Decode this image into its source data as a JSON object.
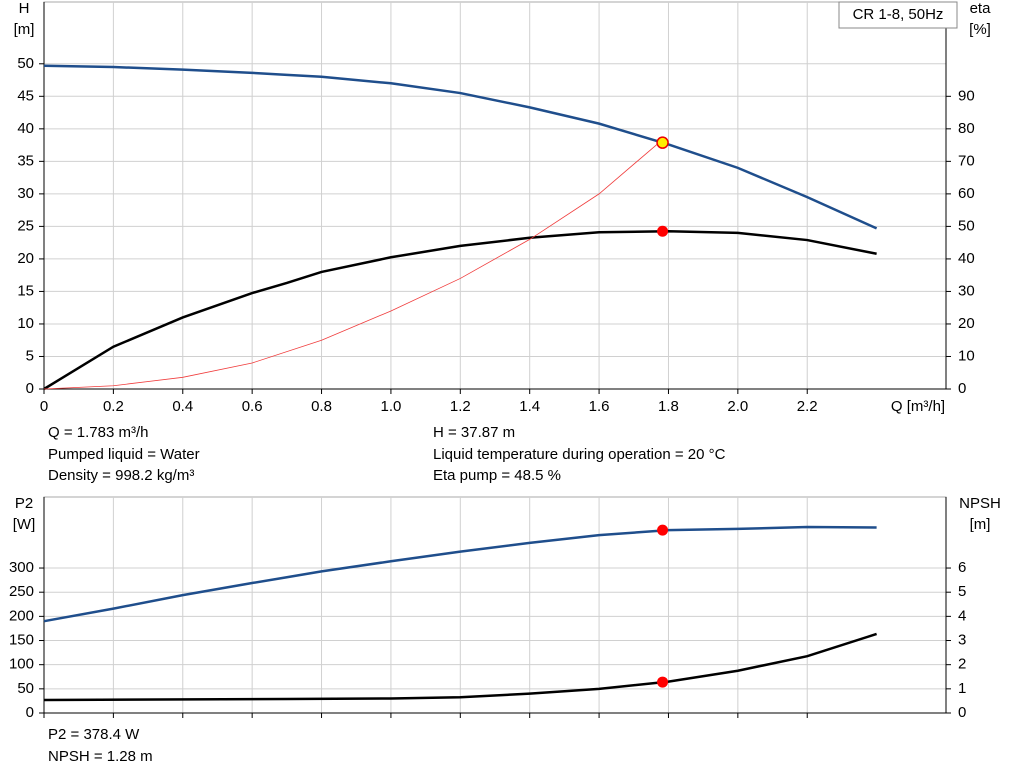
{
  "chart_data": [
    {
      "type": "line",
      "legend_box": "CR 1-8, 50Hz",
      "ylabel": [
        "H",
        "[m]"
      ],
      "y2label": [
        "eta",
        "[%]"
      ],
      "xlabel": "Q [m³/h]",
      "xlim": [
        0,
        2.6
      ],
      "ylim": [
        0,
        59.5
      ],
      "y2lim": [
        0,
        119
      ],
      "xticks": [
        0,
        0.2,
        0.4,
        0.6,
        0.8,
        {
          "value": 1,
          "label": "1.0"
        },
        1.2,
        1.4,
        1.6,
        1.8,
        {
          "value": 2,
          "label": "2.0"
        },
        2.2
      ],
      "yticks": [
        0,
        5,
        10,
        15,
        20,
        25,
        30,
        35,
        40,
        45,
        50
      ],
      "y2ticks": [
        0,
        10,
        20,
        30,
        40,
        50,
        60,
        70,
        80,
        90
      ],
      "grid": true,
      "series": [
        {
          "color": "#1f4e8c",
          "x": [
            0,
            0.2,
            0.4,
            0.6,
            0.7,
            0.8,
            1.0,
            1.2,
            1.4,
            1.6,
            1.8,
            2.0,
            2.2,
            2.4
          ],
          "values": [
            49.7,
            49.5,
            49.1,
            48.6,
            48.3,
            48.0,
            47.0,
            45.5,
            43.3,
            40.8,
            37.6,
            34.0,
            29.5,
            24.7
          ]
        },
        {
          "color": "#000000",
          "axis": "y2",
          "x": [
            0,
            0.2,
            0.4,
            0.6,
            0.7,
            0.8,
            1.0,
            1.2,
            1.4,
            1.6,
            1.8,
            2.0,
            2.2,
            2.4
          ],
          "values": [
            0,
            13,
            22,
            29.5,
            32.6,
            36,
            40.5,
            44,
            46.5,
            48.2,
            48.5,
            48,
            45.8,
            41.6
          ]
        },
        {
          "color": "#f03c3c",
          "x": [
            0,
            0.2,
            0.4,
            0.6,
            0.8,
            1.0,
            1.2,
            1.4,
            1.6,
            1.78
          ],
          "values": [
            0,
            0.5,
            1.8,
            4,
            7.5,
            12,
            17,
            23,
            30,
            38.2
          ]
        }
      ],
      "markers": [
        {
          "x": 1.783,
          "y": 37.87,
          "color": "#ffee00"
        },
        {
          "x": 1.783,
          "y": 48.5,
          "color": "#ff0000",
          "axis": "y2"
        }
      ],
      "annotations": [
        "Q = 1.783 m³/h",
        "Pumped liquid = Water",
        "Density = 998.2 kg/m³",
        "H = 37.87 m",
        "Liquid temperature during operation = 20 °C",
        "Eta pump = 48.5 %"
      ]
    },
    {
      "type": "line",
      "ylabel": [
        "P2",
        "[W]"
      ],
      "y2label": [
        "NPSH",
        "[m]"
      ],
      "xlim": [
        0,
        2.6
      ],
      "ylim": [
        0,
        447
      ],
      "y2lim": [
        0,
        8.94
      ],
      "yticks": [
        0,
        50,
        100,
        150,
        200,
        250,
        300
      ],
      "y2ticks": [
        0,
        1,
        2,
        3,
        4,
        5,
        6
      ],
      "grid": true,
      "series": [
        {
          "color": "#1f4e8c",
          "x": [
            0,
            0.2,
            0.4,
            0.6,
            0.7,
            0.8,
            1.0,
            1.2,
            1.4,
            1.6,
            1.8,
            2.0,
            2.2,
            2.4
          ],
          "values": [
            190,
            216,
            244,
            269,
            281,
            293,
            314,
            334,
            352,
            368,
            378.5,
            381,
            385,
            384
          ]
        },
        {
          "color": "#000000",
          "axis": "y2",
          "x": [
            0,
            0.7,
            1.0,
            1.2,
            1.4,
            1.6,
            1.8,
            2.0,
            2.2,
            2.4
          ],
          "values": [
            0.54,
            0.58,
            0.6,
            0.65,
            0.8,
            1.0,
            1.3,
            1.75,
            2.35,
            3.27
          ]
        }
      ],
      "markers": [
        {
          "x": 1.783,
          "y": 378.4,
          "color": "#ff0000"
        },
        {
          "x": 1.783,
          "y": 1.28,
          "color": "#ff0000",
          "axis": "y2"
        }
      ],
      "annotations": [
        "P2 = 378.4 W",
        "NPSH = 1.28 m"
      ]
    }
  ]
}
